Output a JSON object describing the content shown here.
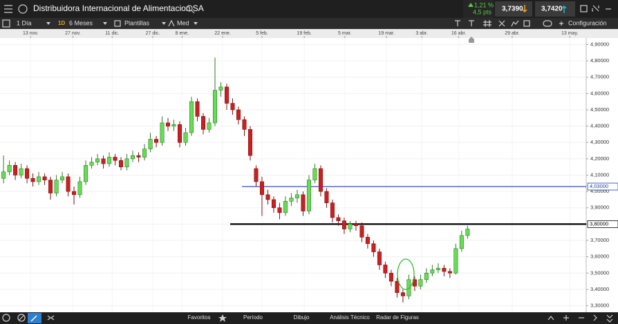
{
  "header": {
    "title": "Distribuidora Internacional de Alimentacion SA",
    "change_pct": "1,21 %",
    "change_pts": "4,5 pts",
    "bid": "3,7390",
    "ask": "3,7420"
  },
  "toolbar": {
    "interval": "1 Día",
    "interval_code": "1D",
    "range": "6 Meses",
    "templates": "Plantillas",
    "style": "Med",
    "settings": "Configuración"
  },
  "footer": {
    "items": [
      "Favoritos",
      "Período",
      "Dibujo",
      "Análisis Técnico",
      "Radar de Figuras"
    ]
  },
  "chart_data": {
    "type": "candlestick",
    "open": [
      4.08,
      4.12,
      4.16,
      4.1,
      4.14,
      4.08,
      4.06,
      4.09,
      4.07,
      3.99,
      4.07,
      4.09,
      4.0,
      3.98,
      4.06,
      4.16,
      4.18,
      4.2,
      4.17,
      4.21,
      4.19,
      4.15,
      4.2,
      4.22,
      4.21,
      4.26,
      4.32,
      4.3,
      4.42,
      4.4,
      4.41,
      4.3,
      4.36,
      4.55,
      4.46,
      4.38,
      4.42,
      4.62,
      4.64,
      4.54,
      4.5,
      4.44,
      4.38,
      4.14,
      4.06,
      3.98,
      3.95,
      3.9,
      3.87,
      3.94,
      3.96,
      3.98,
      3.88,
      4.07,
      4.14,
      4.0,
      3.93,
      3.84,
      3.82,
      3.77,
      3.8,
      3.79,
      3.72,
      3.68,
      3.63,
      3.55,
      3.5,
      3.45,
      3.38,
      3.36,
      3.46,
      3.42,
      3.46,
      3.5,
      3.52,
      3.53,
      3.51,
      3.5,
      3.65,
      3.73
    ],
    "high": [
      4.22,
      4.19,
      4.18,
      4.17,
      4.16,
      4.11,
      4.12,
      4.11,
      4.09,
      4.1,
      4.12,
      4.11,
      4.03,
      4.09,
      4.19,
      4.21,
      4.23,
      4.22,
      4.24,
      4.23,
      4.21,
      4.23,
      4.25,
      4.24,
      4.29,
      4.36,
      4.34,
      4.46,
      4.45,
      4.44,
      4.43,
      4.39,
      4.58,
      4.57,
      4.48,
      4.45,
      4.82,
      4.67,
      4.66,
      4.57,
      4.52,
      4.46,
      4.4,
      4.16,
      4.09,
      4.01,
      3.97,
      3.93,
      3.97,
      3.99,
      4.01,
      4.0,
      4.1,
      4.17,
      4.16,
      4.02,
      3.95,
      3.86,
      3.84,
      3.82,
      3.82,
      3.81,
      3.74,
      3.7,
      3.65,
      3.57,
      3.52,
      3.47,
      3.4,
      3.49,
      3.48,
      3.49,
      3.53,
      3.55,
      3.56,
      3.55,
      3.53,
      3.68,
      3.76,
      3.79
    ],
    "low": [
      4.05,
      4.1,
      4.07,
      4.08,
      4.05,
      4.03,
      4.04,
      4.04,
      3.95,
      3.97,
      4.05,
      3.97,
      3.92,
      3.96,
      4.04,
      4.14,
      4.16,
      4.14,
      4.15,
      4.16,
      4.13,
      4.13,
      4.18,
      4.18,
      4.19,
      4.24,
      4.27,
      4.28,
      4.37,
      4.37,
      4.27,
      4.28,
      4.34,
      4.43,
      4.35,
      4.36,
      4.4,
      4.58,
      4.5,
      4.47,
      4.41,
      4.34,
      4.19,
      4.03,
      3.85,
      3.92,
      3.87,
      3.83,
      3.85,
      3.91,
      3.93,
      3.85,
      3.86,
      4.05,
      3.97,
      3.9,
      3.81,
      3.79,
      3.74,
      3.75,
      3.76,
      3.69,
      3.65,
      3.6,
      3.52,
      3.47,
      3.42,
      3.35,
      3.32,
      3.34,
      3.39,
      3.4,
      3.44,
      3.48,
      3.5,
      3.48,
      3.47,
      3.49,
      3.63,
      3.71
    ],
    "close": [
      4.12,
      4.16,
      4.1,
      4.14,
      4.08,
      4.06,
      4.09,
      4.07,
      3.99,
      4.07,
      4.09,
      4.0,
      3.98,
      4.06,
      4.16,
      4.18,
      4.2,
      4.17,
      4.21,
      4.19,
      4.15,
      4.2,
      4.22,
      4.21,
      4.26,
      4.32,
      4.3,
      4.42,
      4.4,
      4.41,
      4.3,
      4.36,
      4.55,
      4.46,
      4.38,
      4.42,
      4.62,
      4.64,
      4.54,
      4.5,
      4.44,
      4.38,
      4.22,
      4.06,
      3.98,
      3.95,
      3.9,
      3.87,
      3.94,
      3.96,
      3.98,
      3.88,
      4.07,
      4.14,
      4.0,
      3.93,
      3.84,
      3.82,
      3.77,
      3.8,
      3.79,
      3.72,
      3.68,
      3.63,
      3.55,
      3.5,
      3.45,
      3.38,
      3.36,
      3.46,
      3.42,
      3.46,
      3.5,
      3.52,
      3.53,
      3.51,
      3.5,
      3.65,
      3.73,
      3.77
    ],
    "up_color": "#66dd55",
    "down_color": "#cc2020",
    "xlim": [
      -0.6,
      99.2
    ],
    "xticks": [
      {
        "value": 4.6,
        "label": "13 nov."
      },
      {
        "value": 11.8,
        "label": "27 nov."
      },
      {
        "value": 18.5,
        "label": "11 dic."
      },
      {
        "value": 25.4,
        "label": "27 dic."
      },
      {
        "value": 30.4,
        "label": "8 ene."
      },
      {
        "value": 37.3,
        "label": "22 ene."
      },
      {
        "value": 44,
        "label": "5 feb."
      },
      {
        "value": 51.2,
        "label": "19 feb."
      },
      {
        "value": 58.1,
        "label": "5 mar."
      },
      {
        "value": 65.2,
        "label": "19 mar."
      },
      {
        "value": 71.2,
        "label": "3 abr."
      },
      {
        "value": 77.5,
        "label": "16 abr."
      },
      {
        "value": 86.6,
        "label": "29 abr."
      },
      {
        "value": 96.4,
        "label": "13 may."
      }
    ],
    "ylim": [
      3.26,
      4.94
    ],
    "yticks": [
      {
        "value": 3.3,
        "label": "3,30000"
      },
      {
        "value": 3.4,
        "label": "3,40000"
      },
      {
        "value": 3.5,
        "label": "3,50000"
      },
      {
        "value": 3.6,
        "label": "3,60000"
      },
      {
        "value": 3.7,
        "label": "3,70000"
      },
      {
        "value": 3.8,
        "label": "3,80000"
      },
      {
        "value": 3.9,
        "label": "3,90000"
      },
      {
        "value": 4.0,
        "label": "4,00000"
      },
      {
        "value": 4.1,
        "label": "4,10000"
      },
      {
        "value": 4.2,
        "label": "4,20000"
      },
      {
        "value": 4.3,
        "label": "4,30000"
      },
      {
        "value": 4.4,
        "label": "4,40000"
      },
      {
        "value": 4.5,
        "label": "4,50000"
      },
      {
        "value": 4.6,
        "label": "4,60000"
      },
      {
        "value": 4.7,
        "label": "4,70000"
      },
      {
        "value": 4.8,
        "label": "4,80000"
      },
      {
        "value": 4.9,
        "label": "4,90000"
      }
    ],
    "grid": true,
    "levels": [
      {
        "value": 4.03,
        "label": "4,03000",
        "color": "#1a3fa8"
      },
      {
        "value": 3.8,
        "label": "3,80000",
        "color": "#000000"
      }
    ]
  }
}
